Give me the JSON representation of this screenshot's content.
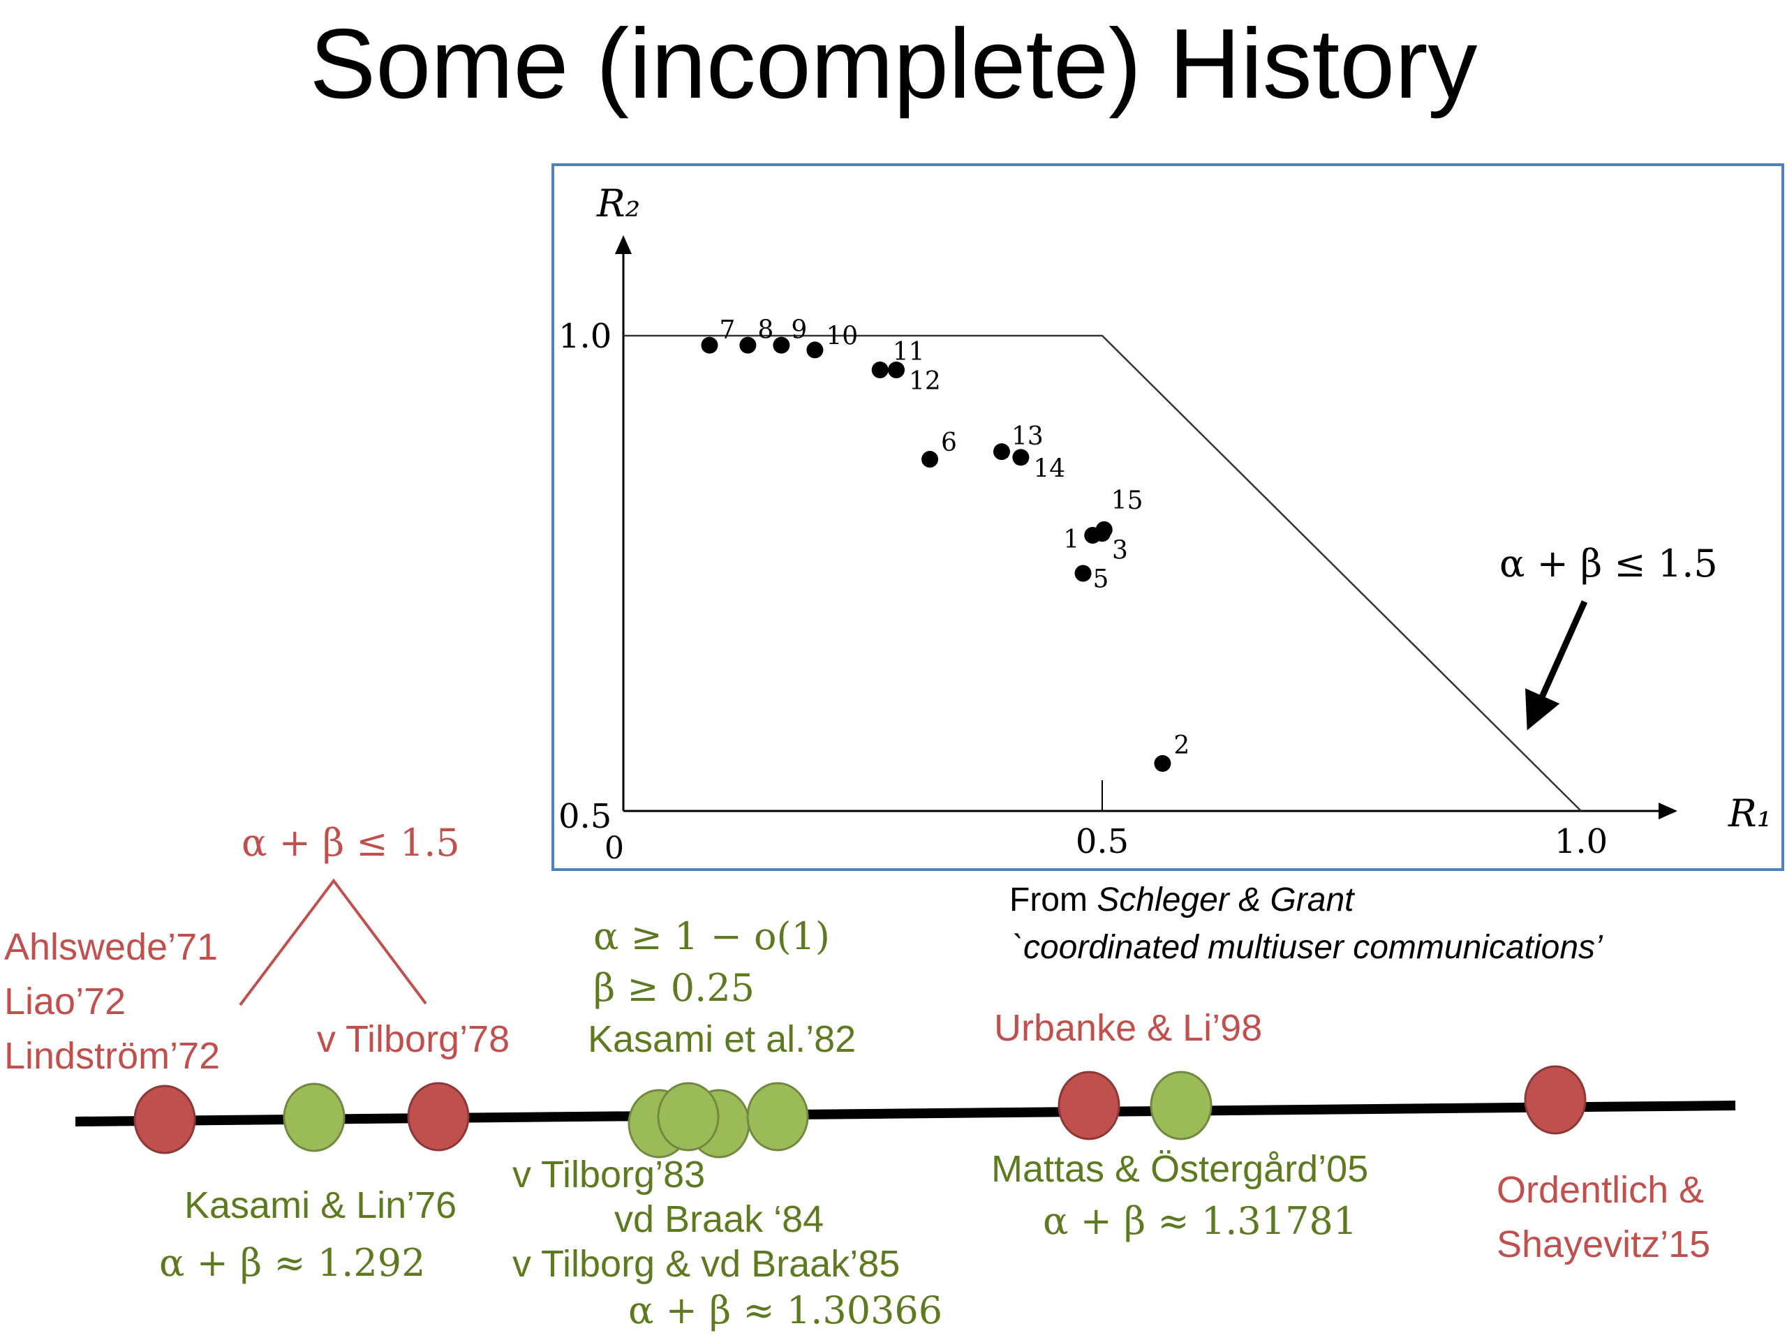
{
  "title": "Some (incomplete) History",
  "chart_data": {
    "type": "scatter",
    "x_label": "R₁",
    "y_label": "R₂",
    "x_ticks": [
      "0",
      "0.5",
      "1.0"
    ],
    "y_ticks": [
      "0.5",
      "1.0"
    ],
    "xlim": [
      0,
      1.0
    ],
    "ylim": [
      0.5,
      1.0
    ],
    "bound_line": [
      [
        0,
        1.0
      ],
      [
        0.5,
        1.0
      ],
      [
        1.0,
        0.5
      ]
    ],
    "bound_label": "α + β ≤ 1.5",
    "points": [
      {
        "label": "7",
        "x": 0.09,
        "y": 0.99
      },
      {
        "label": "8",
        "x": 0.13,
        "y": 0.99
      },
      {
        "label": "9",
        "x": 0.165,
        "y": 0.99
      },
      {
        "label": "10",
        "x": 0.2,
        "y": 0.985
      },
      {
        "label": "11",
        "x": 0.268,
        "y": 0.964
      },
      {
        "label": "12",
        "x": 0.285,
        "y": 0.964
      },
      {
        "label": "6",
        "x": 0.32,
        "y": 0.87
      },
      {
        "label": "13",
        "x": 0.395,
        "y": 0.878
      },
      {
        "label": "14",
        "x": 0.415,
        "y": 0.872
      },
      {
        "label": "15",
        "x": 0.502,
        "y": 0.796
      },
      {
        "label": "1",
        "x": 0.49,
        "y": 0.79
      },
      {
        "label": "3",
        "x": 0.5,
        "y": 0.792
      },
      {
        "label": "5",
        "x": 0.48,
        "y": 0.75
      },
      {
        "label": "2",
        "x": 0.563,
        "y": 0.55
      }
    ]
  },
  "caption": {
    "from": "From",
    "authors": "Schleger & Grant",
    "work": "`coordinated multiuser communications’"
  },
  "timeline": {
    "top_bound": "α + β ≤ 1.5",
    "group1": [
      "Ahlswede’71",
      "Liao’72",
      "Lindström’72"
    ],
    "tilborg78": "v Tilborg’78",
    "kasami82_alpha": "α ≥ 1 − o(1)",
    "kasami82_beta": "β ≥ 0.25",
    "kasami82": "Kasami et al.’82",
    "urbanke98": "Urbanke & Li’98",
    "kasami76": "Kasami & Lin’76",
    "kasami76_val": "α + β ≈ 1.292",
    "tilborg83": "v Tilborg’83",
    "braak84": "vd Braak ‘84",
    "tilborg85": "v Tilborg & vd Braak’85",
    "tilborg85_val": "α + β ≈ 1.30366",
    "mattas05": "Mattas & Östergård’05",
    "mattas05_val": "α + β ≈ 1.31781",
    "ordentlich15": [
      "Ordentlich &",
      "Shayevitz’15"
    ],
    "colors": {
      "red": "#c0504d",
      "green": "#9bbb59",
      "line": "#000000"
    }
  }
}
